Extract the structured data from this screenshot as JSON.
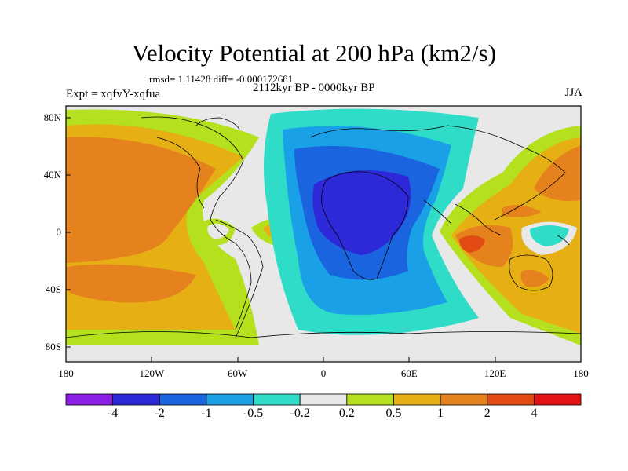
{
  "title": "Velocity Potential at 200 hPa (km2/s)",
  "stats": "rmsd= 1.11428 diff= -0.000172681",
  "experiment": "Expt = xqfvY-xqfua",
  "period": "2112kyr BP - 0000kyr BP",
  "season": "JJA",
  "y_ticks": [
    {
      "label": "80N",
      "lat": 80
    },
    {
      "label": "40N",
      "lat": 40
    },
    {
      "label": "0",
      "lat": 0
    },
    {
      "label": "40S",
      "lat": -40
    },
    {
      "label": "80S",
      "lat": -80
    }
  ],
  "x_ticks": [
    {
      "label": "180",
      "lon": -180
    },
    {
      "label": "120W",
      "lon": -120
    },
    {
      "label": "60W",
      "lon": -60
    },
    {
      "label": "0",
      "lon": 0
    },
    {
      "label": "60E",
      "lon": 60
    },
    {
      "label": "120E",
      "lon": 120
    },
    {
      "label": "180",
      "lon": 180
    }
  ],
  "colorbar": {
    "colors": [
      "#8c1ee6",
      "#2d28d8",
      "#1a64e0",
      "#1aa0e6",
      "#2edcc8",
      "#e8e8e8",
      "#b4e01e",
      "#e6b014",
      "#e6821e",
      "#e24c12",
      "#e61414"
    ],
    "labels": [
      "-4",
      "-2",
      "-1",
      "-0.5",
      "-0.2",
      "0.2",
      "0.5",
      "1",
      "2",
      "4"
    ]
  },
  "legend_colors": {
    "neg4": "#2d28d8",
    "neg2": "#1a64e0",
    "neg1": "#1aa0e6",
    "neg05": "#2edcc8",
    "zero": "#e8e8e8",
    "pos02": "#b4e01e",
    "pos05": "#e6b014",
    "pos1": "#e6821e",
    "pos2": "#e24c12"
  }
}
